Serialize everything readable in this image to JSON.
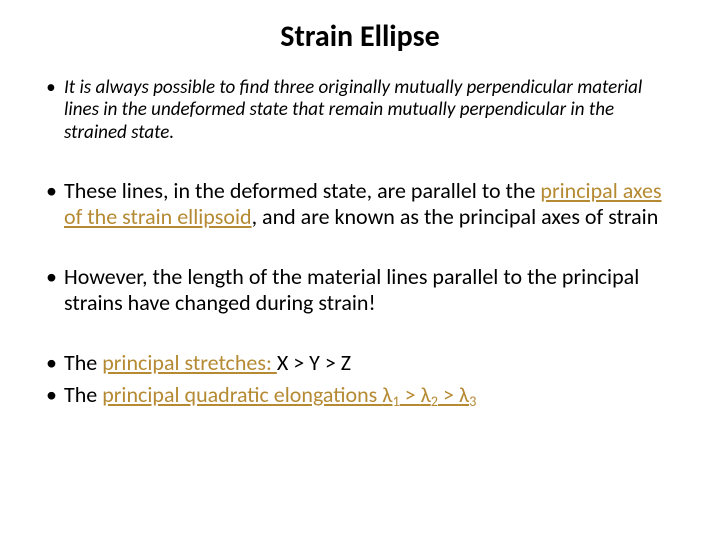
{
  "colors": {
    "background": "#ffffff",
    "text": "#000000",
    "accent": "#b58a33"
  },
  "title": "Strain Ellipse",
  "bullets": {
    "b1": "It is always possible to find three originally mutually perpendicular material lines in the undeformed state that remain mutually perpendicular in the strained state.",
    "b2_pre": "These lines, in the deformed state, are parallel to the ",
    "b2_accent": "principal axes of the strain ellipsoid",
    "b2_post": ", and are known as the principal axes of strain",
    "b3": "However, the length of the material lines parallel to the principal strains have changed during strain!",
    "b4_pre": "The ",
    "b4_accent": "principal stretches: ",
    "b4_post": " X > Y > Z",
    "b5_pre": "The ",
    "b5_accent": "principal quadratic elongations ",
    "lambda": "λ",
    "sub1": "1",
    "sub2": "2",
    "sub3": "3",
    "gt": " > "
  }
}
